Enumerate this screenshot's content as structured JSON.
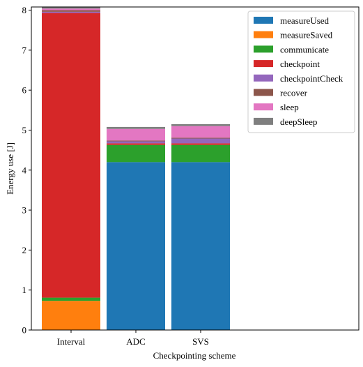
{
  "chart_data": {
    "type": "bar",
    "stacked": true,
    "categories": [
      "Interval",
      "ADC",
      "SVS"
    ],
    "xlabel": "Checkpointing scheme",
    "ylabel": "Energy use [J]",
    "ylim": [
      0,
      8.08
    ],
    "yticks": [
      0,
      1,
      2,
      3,
      4,
      5,
      6,
      7,
      8
    ],
    "grid": false,
    "legend_position": "top-right",
    "series": [
      {
        "name": "measureUsed",
        "color": "#1f77b4",
        "values": [
          0.0,
          4.2,
          4.2
        ]
      },
      {
        "name": "measureSaved",
        "color": "#ff7f0e",
        "values": [
          0.73,
          0.0,
          0.0
        ]
      },
      {
        "name": "communicate",
        "color": "#2ca02c",
        "values": [
          0.08,
          0.43,
          0.43
        ]
      },
      {
        "name": "checkpoint",
        "color": "#d62728",
        "values": [
          7.12,
          0.04,
          0.04
        ]
      },
      {
        "name": "checkpointCheck",
        "color": "#9467bd",
        "values": [
          0.03,
          0.05,
          0.12
        ]
      },
      {
        "name": "recover",
        "color": "#8c564b",
        "values": [
          0.04,
          0.02,
          0.02
        ]
      },
      {
        "name": "sleep",
        "color": "#e377c2",
        "values": [
          0.04,
          0.29,
          0.29
        ]
      },
      {
        "name": "deepSleep",
        "color": "#7f7f7f",
        "values": [
          0.05,
          0.05,
          0.05
        ]
      }
    ]
  }
}
